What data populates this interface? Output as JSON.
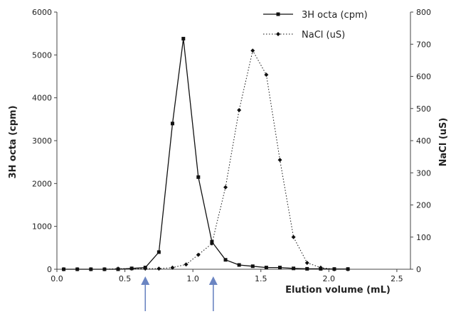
{
  "chart_data": {
    "type": "line",
    "title": "",
    "xlabel": "Elution volume (mL)",
    "ylabel_left": "3H octa (cpm)",
    "ylabel_right": "NaCl (uS)",
    "xlim": [
      0,
      2.6
    ],
    "ylim_left": [
      0,
      6000
    ],
    "ylim_right": [
      0,
      800
    ],
    "x_ticks": [
      "0.0",
      "0.5",
      "1.0",
      "1.5",
      "2.0",
      "2.5"
    ],
    "y_left_ticks": [
      "0",
      "1000",
      "2000",
      "3000",
      "4000",
      "5000",
      "6000"
    ],
    "y_right_ticks": [
      "0",
      "100",
      "200",
      "300",
      "400",
      "500",
      "600",
      "700",
      "800"
    ],
    "grid": false,
    "legend_position": "top-right",
    "series": [
      {
        "name": "3H octa (cpm)",
        "axis": "left",
        "style": "solid",
        "marker": "square",
        "color": "#111111",
        "x": [
          0.05,
          0.15,
          0.25,
          0.35,
          0.45,
          0.55,
          0.65,
          0.75,
          0.85,
          0.93,
          1.04,
          1.14,
          1.24,
          1.34,
          1.44,
          1.54,
          1.64,
          1.74,
          1.84,
          1.94,
          2.04,
          2.14
        ],
        "y": [
          0,
          0,
          0,
          0,
          0,
          20,
          40,
          400,
          3400,
          5380,
          2150,
          640,
          220,
          100,
          70,
          40,
          40,
          20,
          10,
          10,
          5,
          5
        ]
      },
      {
        "name": "NaCl (uS)",
        "axis": "right",
        "style": "dotted",
        "marker": "diamond",
        "color": "#111111",
        "x": [
          0.05,
          0.15,
          0.25,
          0.35,
          0.45,
          0.55,
          0.65,
          0.75,
          0.85,
          0.95,
          1.04,
          1.14,
          1.24,
          1.34,
          1.44,
          1.54,
          1.64,
          1.74,
          1.84,
          1.94,
          2.04,
          2.14
        ],
        "y": [
          0,
          0,
          0,
          0,
          2,
          2,
          2,
          2,
          5,
          15,
          45,
          80,
          255,
          495,
          680,
          605,
          340,
          100,
          20,
          5,
          0,
          0
        ]
      }
    ],
    "arrows": [
      {
        "x": 0.65,
        "color": "#6b85c2"
      },
      {
        "x": 1.15,
        "color": "#6b85c2"
      }
    ]
  }
}
